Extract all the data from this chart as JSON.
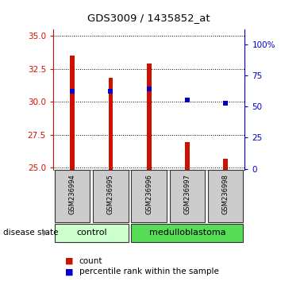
{
  "title": "GDS3009 / 1435852_at",
  "samples": [
    "GSM236994",
    "GSM236995",
    "GSM236996",
    "GSM236997",
    "GSM236998"
  ],
  "bar_values": [
    33.5,
    31.85,
    32.9,
    26.9,
    25.65
  ],
  "bar_base": 24.8,
  "percentile_values": [
    62,
    62,
    64,
    55,
    53
  ],
  "left_ylim": [
    24.8,
    35.5
  ],
  "left_yticks": [
    25,
    27.5,
    30,
    32.5,
    35
  ],
  "right_ylim": [
    -1,
    112
  ],
  "right_yticks": [
    0,
    25,
    50,
    75,
    100
  ],
  "right_yticklabels": [
    "0",
    "25",
    "50",
    "75",
    "100%"
  ],
  "bar_color": "#cc1100",
  "percentile_color": "#0000cc",
  "control_color": "#ccffcc",
  "medulloblastoma_color": "#55dd55",
  "bar_width": 0.12,
  "left_axis_color": "#cc1100",
  "right_axis_color": "#0000cc",
  "n_control": 2,
  "n_med": 3,
  "n_total": 5
}
